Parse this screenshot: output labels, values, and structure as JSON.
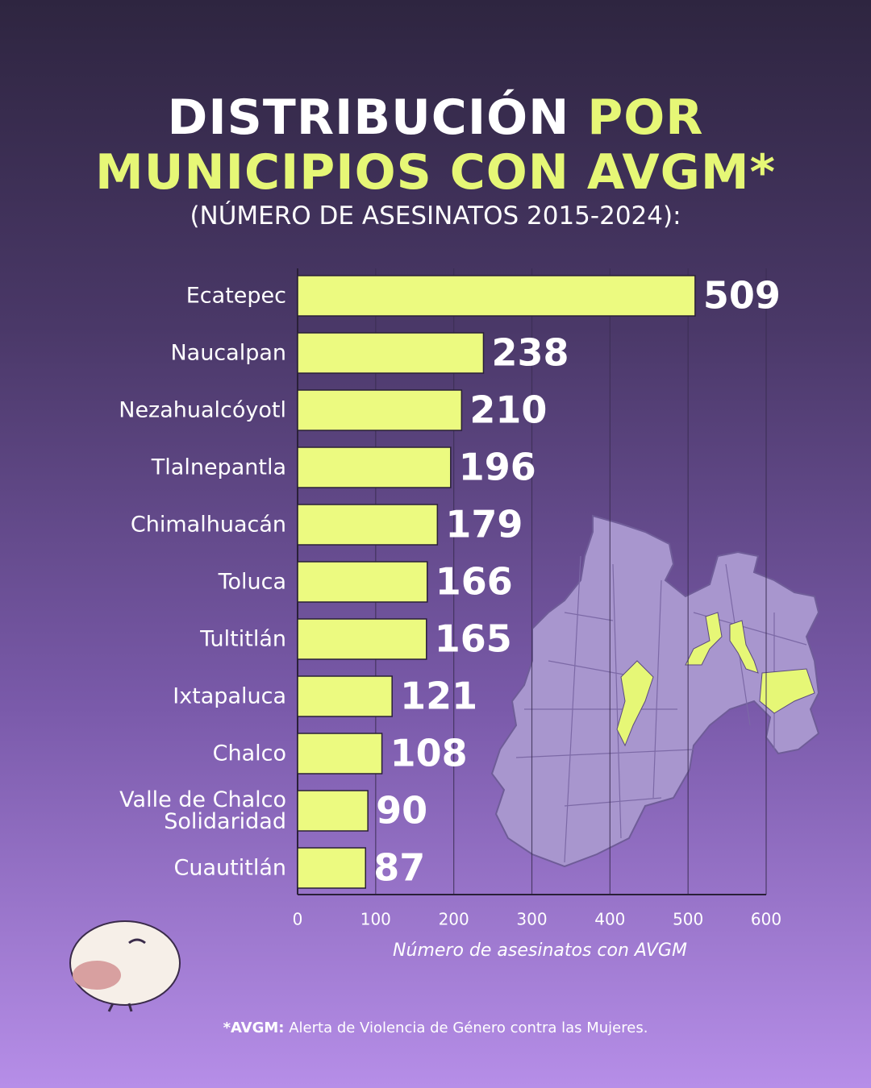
{
  "chart_data": {
    "type": "bar",
    "orientation": "horizontal",
    "title_parts": [
      {
        "text": "DISTRIBUCIÓN",
        "color": "#ffffff"
      },
      {
        "text": "POR",
        "color": "#e6f776"
      },
      {
        "text": "MUNICIPIOS CON AVGM*",
        "color": "#e6f776"
      }
    ],
    "subtitle": "(NÚMERO DE ASESINATOS 2015-2024):",
    "categories": [
      "Ecatepec",
      "Naucalpan",
      "Nezahualcóyotl",
      "Tlalnepantla",
      "Chimalhuacán",
      "Toluca",
      "Tultitlán",
      "Ixtapaluca",
      "Chalco",
      "Valle de Chalco\nSolidaridad",
      "Cuautitlán"
    ],
    "values": [
      509,
      238,
      210,
      196,
      179,
      166,
      165,
      121,
      108,
      90,
      87
    ],
    "color": "#ecfa80",
    "xlim": [
      0,
      600
    ],
    "xticks": [
      0,
      100,
      200,
      300,
      400,
      500,
      600
    ],
    "xlabel": "Número de asesinatos con AVGM",
    "grid": true,
    "footnote": {
      "term": "*AVGM:",
      "text": "Alerta de Violencia de Género contra las Mujeres."
    }
  }
}
